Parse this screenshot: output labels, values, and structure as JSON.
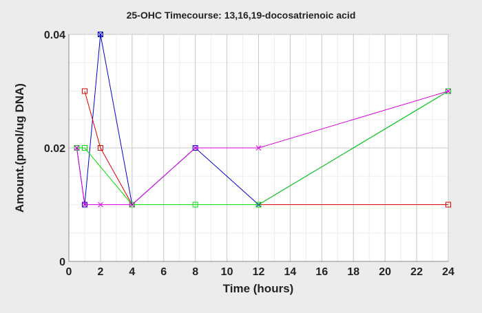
{
  "chart_data": {
    "type": "line",
    "title": "25-OHC Timecourse: 13,16,19-docosatrienoic acid",
    "xlabel": "Time (hours)",
    "ylabel": "Amount.(pmol/ug DNA)",
    "xlim": [
      0,
      24
    ],
    "ylim": [
      0,
      0.04
    ],
    "xticks": [
      0,
      2,
      4,
      6,
      8,
      10,
      12,
      14,
      16,
      18,
      20,
      22,
      24
    ],
    "xtick_labels": [
      "0",
      "2",
      "4",
      "6",
      "8",
      "10",
      "12",
      "14",
      "16",
      "18",
      "20",
      "22",
      "24"
    ],
    "yticks": [
      0,
      0.02,
      0.04
    ],
    "ytick_labels": [
      "0",
      "0.02",
      "0.04"
    ],
    "grid": true,
    "legend": "none",
    "series": [
      {
        "color": "#0000cc",
        "marker": "square-x",
        "points": [
          [
            0.5,
            0.02
          ],
          [
            1,
            0.01
          ],
          [
            2,
            0.04
          ],
          [
            4,
            0.01
          ],
          [
            8,
            0.02
          ],
          [
            12,
            0.01
          ],
          [
            24,
            0.03
          ]
        ]
      },
      {
        "color": "#dd0000",
        "marker": "square",
        "points": [
          [
            1,
            0.03
          ],
          [
            2,
            0.02
          ],
          [
            4,
            0.01
          ],
          [
            12,
            0.01
          ],
          [
            24,
            0.01
          ]
        ]
      },
      {
        "color": "#00dd00",
        "marker": "square",
        "points": [
          [
            0.5,
            0.02
          ],
          [
            1,
            0.02
          ],
          [
            4,
            0.01
          ],
          [
            8,
            0.01
          ],
          [
            12,
            0.01
          ],
          [
            24,
            0.03
          ]
        ]
      },
      {
        "color": "#dd00dd",
        "marker": "x",
        "points": [
          [
            0.5,
            0.02
          ],
          [
            1,
            0.01
          ],
          [
            2,
            0.01
          ],
          [
            4,
            0.01
          ],
          [
            8,
            0.02
          ],
          [
            12,
            0.02
          ],
          [
            24,
            0.03
          ]
        ]
      }
    ]
  }
}
